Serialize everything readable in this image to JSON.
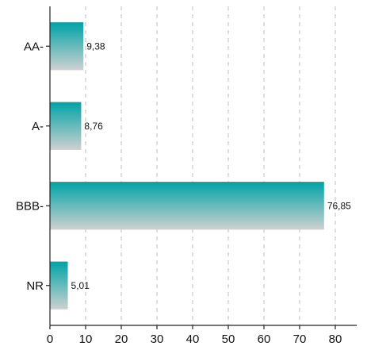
{
  "chart_data": {
    "type": "bar",
    "orientation": "horizontal",
    "categories": [
      "AA-",
      "A-",
      "BBB-",
      "NR"
    ],
    "values": [
      9.38,
      8.76,
      76.85,
      5.01
    ],
    "value_labels": [
      "9,38",
      "8,76",
      "76,85",
      "5,01"
    ],
    "title": "",
    "xlabel": "",
    "ylabel": "",
    "xlim": [
      0,
      86
    ],
    "xticks": [
      0,
      10,
      20,
      30,
      40,
      50,
      60,
      70,
      80
    ],
    "grid": "vertical dashed",
    "legend": "none",
    "colors": {
      "bar_top": "#00a3a6",
      "bar_bottom": "#d0d0d0"
    }
  }
}
